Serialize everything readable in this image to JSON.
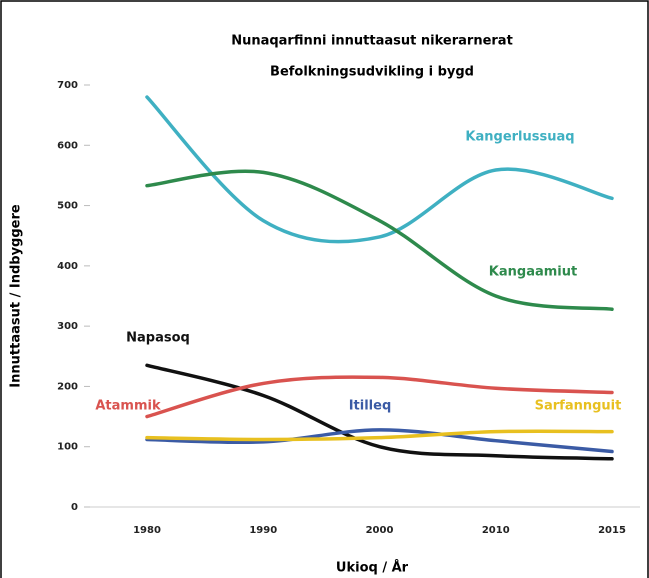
{
  "chart_data": {
    "type": "line",
    "title": "Nunaqarfinni innuttaasut nikerarnerat",
    "subtitle": "Befolkningsudvikling i bygd",
    "x_label": "Ukioq / År",
    "y_label": "Innuttaasut / Indbyggere",
    "categories": [
      "1980",
      "1990",
      "2000",
      "2010",
      "2015"
    ],
    "ylim": [
      0,
      700
    ],
    "yticks": [
      0,
      100,
      200,
      300,
      400,
      500,
      600,
      700
    ],
    "series": [
      {
        "name": "Kangerlussuaq",
        "color": "#3fb0c2",
        "values": [
          680,
          475,
          448,
          559,
          512
        ]
      },
      {
        "name": "Kangaamiut",
        "color": "#2e8a4c",
        "values": [
          533,
          555,
          475,
          350,
          328
        ]
      },
      {
        "name": "Napasoq",
        "color": "#111111",
        "values": [
          235,
          185,
          100,
          85,
          80
        ]
      },
      {
        "name": "Atammik",
        "color": "#d9534f",
        "values": [
          150,
          205,
          215,
          197,
          190
        ]
      },
      {
        "name": "Itilleq",
        "color": "#3b5ba5",
        "values": [
          112,
          108,
          128,
          110,
          92
        ]
      },
      {
        "name": "Sarfannguit",
        "color": "#e8c020",
        "values": [
          115,
          112,
          115,
          125,
          125
        ]
      }
    ]
  }
}
